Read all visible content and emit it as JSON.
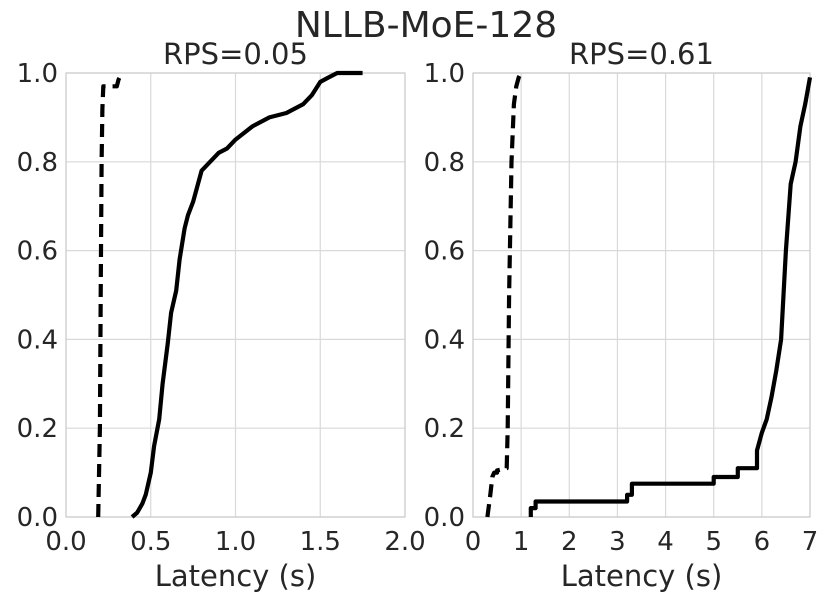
{
  "figure": {
    "suptitle": "NLLB-MoE-128"
  },
  "chart_data": [
    {
      "type": "line",
      "title": "RPS=0.05",
      "xlabel": "Latency (s)",
      "ylabel": "",
      "xlim": [
        0.0,
        2.0
      ],
      "ylim": [
        0.0,
        1.0
      ],
      "xticks": [
        "0.0",
        "0.5",
        "1.0",
        "1.5",
        "2.0"
      ],
      "yticks": [
        "0.0",
        "0.2",
        "0.4",
        "0.6",
        "0.8",
        "1.0"
      ],
      "grid": true,
      "series": [
        {
          "style": "dashed",
          "x": [
            0.19,
            0.2,
            0.205,
            0.21,
            0.215,
            0.22,
            0.24,
            0.3,
            0.31,
            0.33
          ],
          "y": [
            0.0,
            0.2,
            0.5,
            0.8,
            0.92,
            0.97,
            0.97,
            0.97,
            0.985,
            1.0
          ]
        },
        {
          "style": "solid",
          "x": [
            0.39,
            0.42,
            0.45,
            0.47,
            0.5,
            0.52,
            0.55,
            0.57,
            0.6,
            0.62,
            0.65,
            0.67,
            0.7,
            0.72,
            0.75,
            0.8,
            0.85,
            0.9,
            0.95,
            1.0,
            1.1,
            1.2,
            1.3,
            1.4,
            1.45,
            1.5,
            1.55,
            1.6,
            1.75
          ],
          "y": [
            0.0,
            0.01,
            0.03,
            0.05,
            0.1,
            0.16,
            0.22,
            0.3,
            0.39,
            0.46,
            0.51,
            0.58,
            0.65,
            0.68,
            0.71,
            0.78,
            0.8,
            0.82,
            0.83,
            0.85,
            0.88,
            0.9,
            0.91,
            0.93,
            0.95,
            0.98,
            0.99,
            1.0,
            1.0
          ]
        }
      ]
    },
    {
      "type": "line",
      "title": "RPS=0.61",
      "xlabel": "Latency (s)",
      "ylabel": "",
      "xlim": [
        0,
        7
      ],
      "ylim": [
        0.0,
        1.0
      ],
      "xticks": [
        "0",
        "1",
        "2",
        "3",
        "4",
        "5",
        "6",
        "7"
      ],
      "yticks": [
        "0.0",
        "0.2",
        "0.4",
        "0.6",
        "0.8",
        "1.0"
      ],
      "grid": true,
      "series": [
        {
          "style": "dashed",
          "x": [
            0.3,
            0.36,
            0.4,
            0.44,
            0.5,
            0.5,
            0.7,
            0.72,
            0.75,
            0.8,
            0.85,
            0.9,
            0.95,
            1.0
          ],
          "y": [
            0.0,
            0.05,
            0.09,
            0.1,
            0.1,
            0.105,
            0.11,
            0.2,
            0.5,
            0.8,
            0.93,
            0.97,
            0.99,
            1.0
          ]
        },
        {
          "style": "solid",
          "x": [
            1.2,
            1.2,
            1.3,
            1.3,
            1.5,
            2.0,
            3.2,
            3.2,
            3.3,
            3.3,
            4.0,
            5.0,
            5.0,
            5.5,
            5.5,
            5.9,
            5.9,
            6.0,
            6.1,
            6.2,
            6.3,
            6.4,
            6.5,
            6.6,
            6.7,
            6.8,
            6.9,
            7.0
          ],
          "y": [
            0.0,
            0.02,
            0.02,
            0.035,
            0.035,
            0.035,
            0.035,
            0.05,
            0.05,
            0.075,
            0.075,
            0.075,
            0.09,
            0.09,
            0.11,
            0.11,
            0.15,
            0.19,
            0.22,
            0.27,
            0.33,
            0.4,
            0.6,
            0.75,
            0.8,
            0.88,
            0.93,
            0.99
          ]
        }
      ]
    }
  ]
}
